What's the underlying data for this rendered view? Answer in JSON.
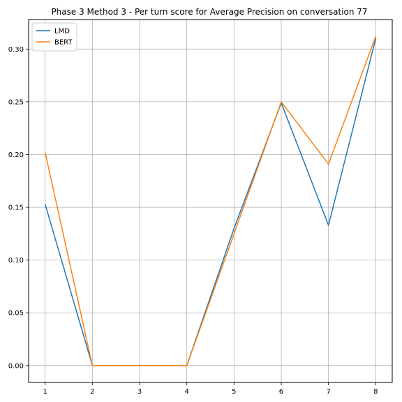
{
  "chart_data": {
    "type": "line",
    "title": "Phase 3 Method 3 - Per turn score for Average Precision on conversation 77",
    "xlabel": "",
    "ylabel": "",
    "x": [
      1,
      2,
      3,
      4,
      5,
      6,
      7,
      8
    ],
    "xticks": [
      "1",
      "2",
      "3",
      "4",
      "5",
      "6",
      "7",
      "8"
    ],
    "yticks": [
      "0.00",
      "0.05",
      "0.10",
      "0.15",
      "0.20",
      "0.25",
      "0.30"
    ],
    "xlim": [
      0.65,
      8.35
    ],
    "ylim": [
      -0.016,
      0.328
    ],
    "grid": true,
    "legend_position": "top-left",
    "series": [
      {
        "name": "LMD",
        "color": "#1f77b4",
        "values": [
          0.153,
          0.0,
          0.0,
          0.0,
          0.13,
          0.249,
          0.133,
          0.31
        ]
      },
      {
        "name": "BERT",
        "color": "#ff7f0e",
        "values": [
          0.202,
          0.0,
          0.0,
          0.0,
          0.125,
          0.25,
          0.191,
          0.312
        ]
      }
    ]
  }
}
